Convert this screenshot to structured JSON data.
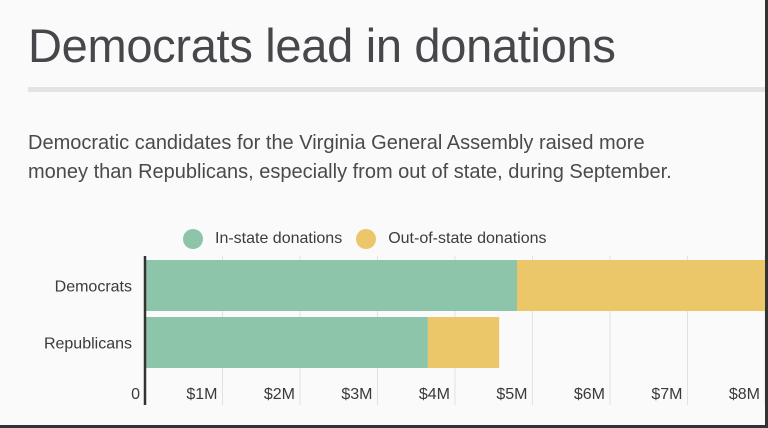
{
  "title": "Democrats lead in donations",
  "subtitle_lines": [
    "Democratic candidates for the Virginia General Assembly raised more",
    "money than Republicans, especially from out of state, during September."
  ],
  "chart_data": {
    "type": "bar",
    "orientation": "horizontal",
    "stacked": true,
    "categories": [
      "Democrats",
      "Republicans"
    ],
    "series": [
      {
        "name": "In-state donations",
        "values": [
          4.8,
          3.65
        ],
        "color": "#8cc5aa"
      },
      {
        "name": "Out-of-state donations",
        "values": [
          3.5,
          0.92
        ],
        "color": "#ecc76a"
      }
    ],
    "xlim": [
      0,
      8.2
    ],
    "x_unit": "millions of dollars",
    "x_ticks": [
      0,
      1,
      2,
      3,
      4,
      5,
      6,
      7,
      8
    ],
    "x_tick_labels": [
      "0",
      "$1M",
      "$2M",
      "$3M",
      "$4M",
      "$5M",
      "$6M",
      "$7M",
      "$8M"
    ],
    "grid": "vertical",
    "legend": "top"
  }
}
